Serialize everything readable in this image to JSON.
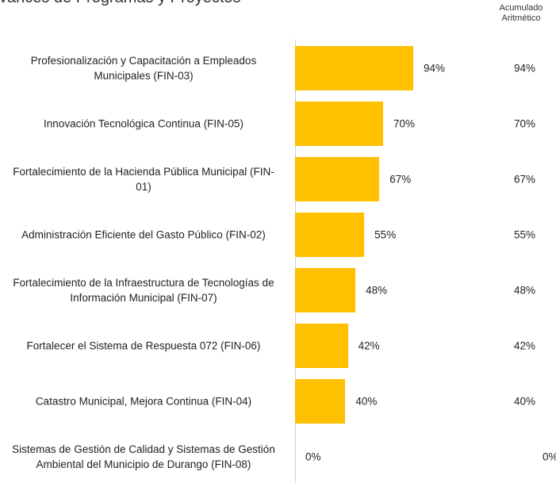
{
  "chart_data": {
    "type": "bar",
    "orientation": "horizontal",
    "title": "Avances de Programas y Proyectos",
    "categories": [
      "Profesionalización y Capacitación a Empleados Municipales (FIN-03)",
      "Innovación Tecnológica Continua (FIN-05)",
      "Fortalecimiento de la Hacienda Pública Municipal (FIN-01)",
      "Administración Eficiente del Gasto Público (FIN-02)",
      "Fortalecimiento de la Infraestructura de Tecnologías de Información Municipal (FIN-07)",
      "Fortalecer el Sistema de Respuesta 072 (FIN-06)",
      "Catastro Municipal, Mejora Continua (FIN-04)",
      "Sistemas de Gestión de Calidad y Sistemas de Gestión Ambiental del Municipio de Durango (FIN-08)"
    ],
    "values": [
      94,
      70,
      67,
      55,
      48,
      42,
      40,
      0
    ],
    "value_labels": [
      "94%",
      "70%",
      "67%",
      "55%",
      "48%",
      "42%",
      "40%",
      "0%"
    ],
    "color": "#ffc000",
    "xlim": [
      0,
      100
    ],
    "cumulative": {
      "label": [
        "Acumulado",
        "Aritmético"
      ],
      "values": [
        94,
        70,
        67,
        55,
        48,
        42,
        40,
        0
      ],
      "value_labels": [
        "94%",
        "70%",
        "67%",
        "55%",
        "48%",
        "42%",
        "40%",
        "0%"
      ]
    }
  }
}
